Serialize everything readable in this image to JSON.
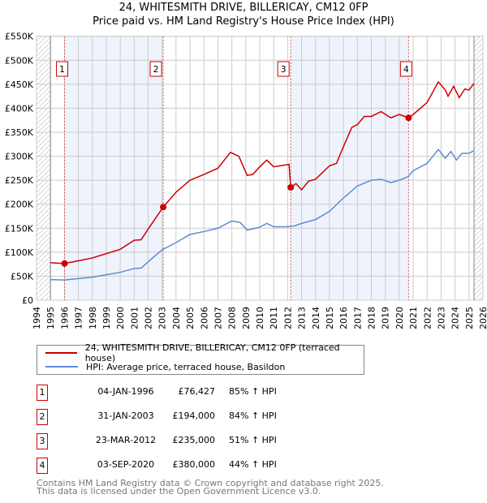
{
  "title": "24, WHITESMITH DRIVE, BILLERICAY, CM12 0FP",
  "subtitle": "Price paid vs. HM Land Registry's House Price Index (HPI)",
  "chart_data": {
    "type": "line",
    "ylim": [
      0,
      550000
    ],
    "xlim": [
      1994,
      2026
    ],
    "yticks": [
      {
        "v": 0,
        "label": "£0"
      },
      {
        "v": 50000,
        "label": "£50K"
      },
      {
        "v": 100000,
        "label": "£100K"
      },
      {
        "v": 150000,
        "label": "£150K"
      },
      {
        "v": 200000,
        "label": "£200K"
      },
      {
        "v": 250000,
        "label": "£250K"
      },
      {
        "v": 300000,
        "label": "£300K"
      },
      {
        "v": 350000,
        "label": "£350K"
      },
      {
        "v": 400000,
        "label": "£400K"
      },
      {
        "v": 450000,
        "label": "£450K"
      },
      {
        "v": 500000,
        "label": "£500K"
      },
      {
        "v": 550000,
        "label": "£550K"
      }
    ],
    "xticks": [
      "1994",
      "1995",
      "1996",
      "1997",
      "1998",
      "1999",
      "2000",
      "2001",
      "2002",
      "2003",
      "2004",
      "2005",
      "2006",
      "2007",
      "2008",
      "2009",
      "2010",
      "2011",
      "2012",
      "2013",
      "2014",
      "2015",
      "2016",
      "2017",
      "2018",
      "2019",
      "2020",
      "2021",
      "2022",
      "2023",
      "2024",
      "2025",
      "2026"
    ],
    "data_range": [
      1995,
      2025.36
    ],
    "series": [
      {
        "name": "24, WHITESMITH DRIVE, BILLERICAY, CM12 0FP (terraced house)",
        "color": "#cc0000",
        "points": [
          [
            1995,
            78000
          ],
          [
            1996,
            76427
          ],
          [
            1997,
            82000
          ],
          [
            1998,
            88000
          ],
          [
            1999,
            97000
          ],
          [
            2000,
            106000
          ],
          [
            2001,
            125000
          ],
          [
            2001.5,
            126000
          ],
          [
            2002,
            148000
          ],
          [
            2003.08,
            194000
          ],
          [
            2004,
            225000
          ],
          [
            2005,
            250000
          ],
          [
            2006,
            262000
          ],
          [
            2007,
            275000
          ],
          [
            2007.9,
            308000
          ],
          [
            2008.5,
            300000
          ],
          [
            2009.1,
            260000
          ],
          [
            2009.5,
            262000
          ],
          [
            2010,
            278000
          ],
          [
            2010.5,
            292000
          ],
          [
            2011,
            278000
          ],
          [
            2012.1,
            283000
          ],
          [
            2012.22,
            235000
          ],
          [
            2012.6,
            243000
          ],
          [
            2013,
            230000
          ],
          [
            2013.5,
            248000
          ],
          [
            2014,
            252000
          ],
          [
            2015,
            280000
          ],
          [
            2015.5,
            285000
          ],
          [
            2016,
            320000
          ],
          [
            2016.6,
            360000
          ],
          [
            2017,
            366000
          ],
          [
            2017.5,
            383000
          ],
          [
            2018,
            383000
          ],
          [
            2018.7,
            393000
          ],
          [
            2019.4,
            380000
          ],
          [
            2020,
            387000
          ],
          [
            2020.67,
            380000
          ],
          [
            2021,
            387000
          ],
          [
            2022,
            412000
          ],
          [
            2022.8,
            455000
          ],
          [
            2023.3,
            438000
          ],
          [
            2023.5,
            425000
          ],
          [
            2023.9,
            446000
          ],
          [
            2024.3,
            422000
          ],
          [
            2024.7,
            440000
          ],
          [
            2025,
            438000
          ],
          [
            2025.36,
            452000
          ]
        ]
      },
      {
        "name": "HPI: Average price, terraced house, Basildon",
        "color": "#5b8bd0",
        "points": [
          [
            1995,
            43000
          ],
          [
            1996,
            42000
          ],
          [
            1997,
            45000
          ],
          [
            1998,
            48000
          ],
          [
            1999,
            53000
          ],
          [
            2000,
            58000
          ],
          [
            2001,
            66000
          ],
          [
            2001.5,
            67000
          ],
          [
            2002,
            80000
          ],
          [
            2003,
            105000
          ],
          [
            2004,
            120000
          ],
          [
            2005,
            137000
          ],
          [
            2006,
            143000
          ],
          [
            2007,
            150000
          ],
          [
            2008,
            165000
          ],
          [
            2008.6,
            162000
          ],
          [
            2009.1,
            146000
          ],
          [
            2010,
            152000
          ],
          [
            2010.5,
            160000
          ],
          [
            2011,
            153000
          ],
          [
            2012,
            153000
          ],
          [
            2012.5,
            155000
          ],
          [
            2013,
            160000
          ],
          [
            2014,
            168000
          ],
          [
            2015,
            185000
          ],
          [
            2016,
            213000
          ],
          [
            2017,
            238000
          ],
          [
            2018,
            250000
          ],
          [
            2018.7,
            252000
          ],
          [
            2019.4,
            245000
          ],
          [
            2020,
            250000
          ],
          [
            2020.67,
            258000
          ],
          [
            2021,
            270000
          ],
          [
            2022,
            285000
          ],
          [
            2022.8,
            314000
          ],
          [
            2023.3,
            296000
          ],
          [
            2023.7,
            310000
          ],
          [
            2024.1,
            292000
          ],
          [
            2024.5,
            306000
          ],
          [
            2025,
            306000
          ],
          [
            2025.36,
            312000
          ]
        ]
      }
    ],
    "sales": [
      {
        "n": "1",
        "x": 1996.01,
        "y": 76427
      },
      {
        "n": "2",
        "x": 2003.08,
        "y": 194000
      },
      {
        "n": "3",
        "x": 2012.22,
        "y": 235000
      },
      {
        "n": "4",
        "x": 2020.67,
        "y": 380000
      }
    ],
    "shaded": [
      [
        1996.01,
        2003.08
      ],
      [
        2012.22,
        2020.67
      ]
    ]
  },
  "legend": [
    {
      "label": "24, WHITESMITH DRIVE, BILLERICAY, CM12 0FP (terraced house)",
      "color": "#cc0000"
    },
    {
      "label": "HPI: Average price, terraced house, Basildon",
      "color": "#5b8bd0"
    }
  ],
  "table": [
    {
      "n": "1",
      "date": "04-JAN-1996",
      "price": "£76,427",
      "hpi": "85% ↑ HPI"
    },
    {
      "n": "2",
      "date": "31-JAN-2003",
      "price": "£194,000",
      "hpi": "84% ↑ HPI"
    },
    {
      "n": "3",
      "date": "23-MAR-2012",
      "price": "£235,000",
      "hpi": "51% ↑ HPI"
    },
    {
      "n": "4",
      "date": "03-SEP-2020",
      "price": "£380,000",
      "hpi": "44% ↑ HPI"
    }
  ],
  "footer": {
    "line1": "Contains HM Land Registry data © Crown copyright and database right 2025.",
    "line2": "This data is licensed under the Open Government Licence v3.0."
  }
}
